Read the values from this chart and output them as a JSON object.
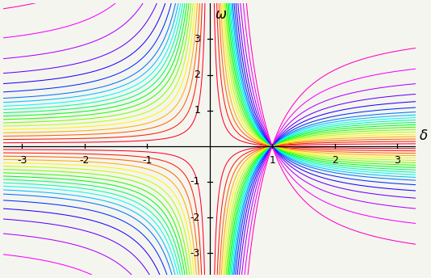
{
  "xlabel": "\\delta",
  "ylabel": "\\omega",
  "xlim": [
    -3.3,
    3.3
  ],
  "ylim": [
    -3.6,
    4.0
  ],
  "xticks": [
    -3,
    -2,
    -1,
    1,
    2,
    3
  ],
  "yticks": [
    -3,
    -2,
    -1,
    1,
    2,
    3
  ],
  "background_color": "#f5f5f0",
  "C_values": [
    0.08,
    0.16,
    0.24,
    0.32,
    0.4,
    0.48,
    0.56,
    0.64,
    0.72,
    0.8,
    0.88,
    0.96,
    1.05,
    1.15,
    1.3,
    1.5,
    1.75,
    2.1,
    2.6,
    3.3
  ],
  "axis_color": "#555555",
  "tick_color": "#555555",
  "label_fontsize": 11,
  "tick_fontsize": 9
}
